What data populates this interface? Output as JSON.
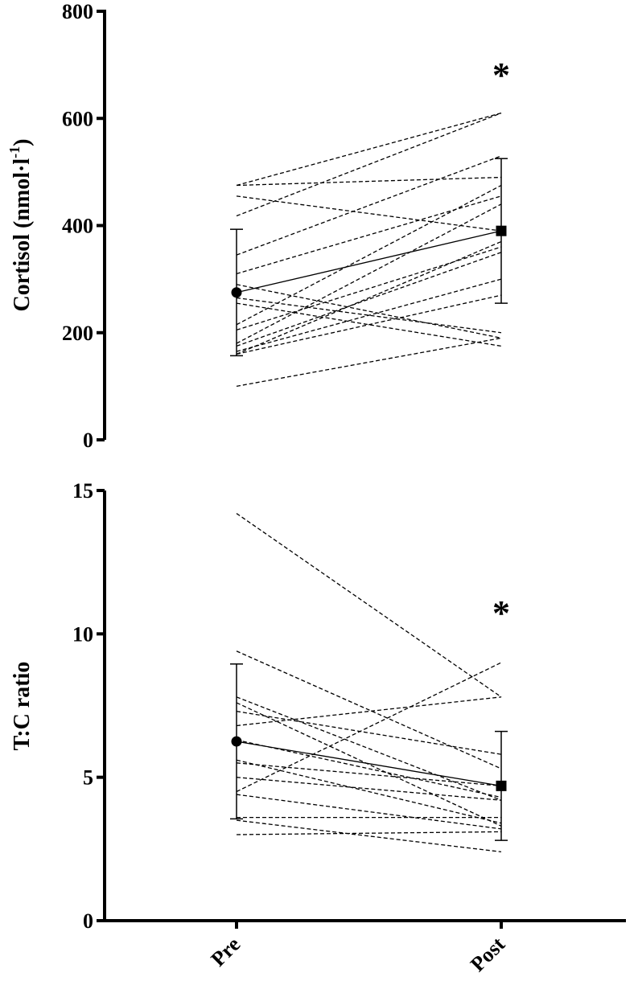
{
  "chart_data": [
    {
      "type": "line",
      "title": "",
      "ylabel": "Cortisol (nmol·l",
      "ylabel_superscript": "-1",
      "ylabel_suffix": ")",
      "categories": [
        "Pre",
        "Post"
      ],
      "ylim": [
        0,
        800
      ],
      "yticks": [
        0,
        200,
        400,
        600,
        800
      ],
      "significance_marker": "*",
      "subjects": [
        [
          475,
          610
        ],
        [
          418,
          610
        ],
        [
          455,
          390
        ],
        [
          475,
          490
        ],
        [
          345,
          530
        ],
        [
          310,
          455
        ],
        [
          290,
          190
        ],
        [
          265,
          200
        ],
        [
          255,
          175
        ],
        [
          215,
          475
        ],
        [
          205,
          360
        ],
        [
          180,
          440
        ],
        [
          175,
          350
        ],
        [
          165,
          300
        ],
        [
          160,
          370
        ],
        [
          160,
          270
        ],
        [
          100,
          190
        ]
      ],
      "mean": {
        "Pre": 275,
        "Post": 390
      },
      "sd": {
        "Pre": 118,
        "Post": 135
      }
    },
    {
      "type": "line",
      "title": "",
      "ylabel": "T:C ratio",
      "categories": [
        "Pre",
        "Post"
      ],
      "ylim": [
        0,
        15
      ],
      "yticks": [
        0,
        5,
        10,
        15
      ],
      "significance_marker": "*",
      "subjects": [
        [
          14.2,
          7.8
        ],
        [
          9.4,
          5.3
        ],
        [
          7.8,
          4.2
        ],
        [
          7.6,
          3.3
        ],
        [
          7.3,
          5.8
        ],
        [
          6.8,
          7.8
        ],
        [
          6.3,
          4.3
        ],
        [
          5.6,
          3.4
        ],
        [
          5.5,
          4.7
        ],
        [
          5.0,
          4.2
        ],
        [
          4.5,
          9.0
        ],
        [
          4.4,
          3.2
        ],
        [
          3.6,
          3.6
        ],
        [
          3.5,
          2.4
        ],
        [
          3.0,
          3.1
        ]
      ],
      "mean": {
        "Pre": 6.25,
        "Post": 4.7
      },
      "sd": {
        "Pre": 2.7,
        "Post": 1.9
      }
    }
  ]
}
